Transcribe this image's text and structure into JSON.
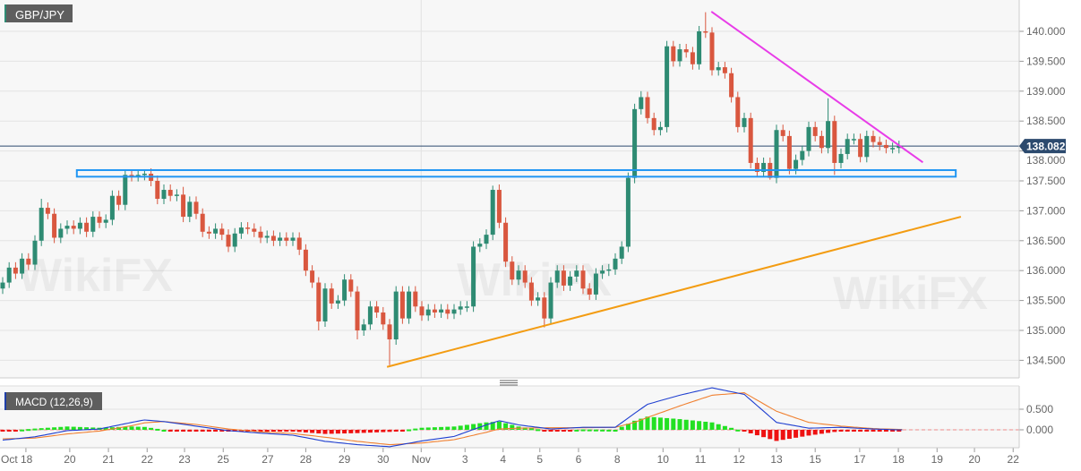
{
  "chart_data": {
    "type": "candlestick",
    "symbol": "GBP/JPY",
    "y_ticks": [
      "140.000",
      "139.500",
      "139.000",
      "138.500",
      "138.000",
      "137.500",
      "137.000",
      "136.500",
      "136.000",
      "135.500",
      "135.000",
      "134.500"
    ],
    "y_tick_values": [
      140.0,
      139.5,
      139.0,
      138.5,
      138.0,
      137.5,
      137.0,
      136.5,
      136.0,
      135.5,
      135.0,
      134.5
    ],
    "ylim": [
      134.3,
      140.5
    ],
    "last_price_label": "138.082",
    "last_price": 138.082,
    "x_ticks": [
      {
        "label": "Oct  18",
        "candle": 3.6
      },
      {
        "label": "20",
        "candle": 10.4
      },
      {
        "label": "21",
        "candle": 16.4
      },
      {
        "label": "22",
        "candle": 22.4
      },
      {
        "label": "23",
        "candle": 28.2
      },
      {
        "label": "25",
        "candle": 34.2
      },
      {
        "label": "27",
        "candle": 41.1
      },
      {
        "label": "28",
        "candle": 47
      },
      {
        "label": "29",
        "candle": 53
      },
      {
        "label": "30",
        "candle": 59
      },
      {
        "label": "Nov",
        "candle": 64.9
      },
      {
        "label": "3",
        "candle": 71.7
      },
      {
        "label": "4",
        "candle": 77.6
      },
      {
        "label": "5",
        "candle": 83.3
      },
      {
        "label": "6",
        "candle": 89.3
      },
      {
        "label": "8",
        "candle": 95.3
      },
      {
        "label": "10",
        "candle": 102.4
      },
      {
        "label": "11",
        "candle": 108.2
      },
      {
        "label": "12",
        "candle": 114.2
      },
      {
        "label": "13",
        "candle": 120
      },
      {
        "label": "15",
        "candle": 126
      },
      {
        "label": "17",
        "candle": 132.9
      },
      {
        "label": "18",
        "candle": 138.9
      },
      {
        "label": "19",
        "candle": 144.9
      },
      {
        "label": "20",
        "candle": 150.7
      },
      {
        "label": "22",
        "candle": 156.7
      }
    ],
    "close": [
      135.8,
      136.05,
      135.95,
      136.2,
      136.1,
      136.5,
      137.05,
      136.95,
      136.55,
      136.7,
      136.75,
      136.7,
      136.8,
      136.65,
      136.9,
      136.8,
      136.85,
      137.25,
      137.1,
      137.6,
      137.58,
      137.6,
      137.62,
      137.5,
      137.2,
      137.35,
      137.25,
      137.27,
      136.9,
      137.15,
      136.95,
      136.65,
      136.62,
      136.7,
      136.6,
      136.4,
      136.62,
      136.72,
      136.7,
      136.65,
      136.55,
      136.58,
      136.5,
      136.55,
      136.5,
      136.55,
      136.35,
      136.0,
      135.8,
      135.15,
      135.7,
      135.45,
      135.5,
      135.85,
      135.65,
      135.0,
      135.1,
      135.4,
      135.3,
      135.1,
      134.85,
      135.65,
      135.2,
      135.65,
      135.4,
      135.25,
      135.35,
      135.3,
      135.35,
      135.28,
      135.35,
      135.4,
      135.4,
      136.4,
      136.45,
      136.6,
      137.35,
      136.8,
      136.15,
      135.85,
      136.0,
      135.8,
      135.5,
      135.55,
      135.2,
      135.8,
      136.0,
      135.75,
      135.9,
      136.0,
      135.7,
      135.6,
      135.95,
      136.0,
      136.02,
      136.2,
      136.4,
      137.55,
      138.7,
      138.9,
      138.55,
      138.35,
      138.4,
      139.75,
      139.5,
      139.7,
      139.65,
      139.45,
      140.0,
      139.98,
      139.35,
      139.4,
      139.3,
      138.9,
      138.4,
      138.55,
      137.8,
      137.65,
      137.8,
      137.55,
      138.35,
      138.25,
      137.7,
      137.85,
      138.0,
      138.4,
      138.25,
      138.05,
      138.5,
      137.8,
      137.95,
      138.2,
      138.2,
      137.9,
      138.25,
      138.15,
      138.1,
      138.05,
      138.05,
      138.082
    ],
    "first_open": 135.7,
    "notable_wicks": [
      {
        "candle": 6,
        "high": 137.2
      },
      {
        "candle": 22,
        "high": 137.68
      },
      {
        "candle": 28,
        "high": 137.4
      },
      {
        "candle": 49,
        "low": 135.0
      },
      {
        "candle": 55,
        "low": 134.85
      },
      {
        "candle": 60,
        "low": 134.42
      },
      {
        "candle": 76,
        "high": 137.42
      },
      {
        "candle": 84,
        "low": 135.05
      },
      {
        "candle": 99,
        "high": 139.0
      },
      {
        "candle": 109,
        "high": 140.32
      },
      {
        "candle": 119,
        "low": 137.52
      },
      {
        "candle": 128,
        "high": 138.88
      },
      {
        "candle": 129,
        "low": 137.6
      }
    ],
    "annotations": [
      {
        "type": "zone",
        "name": "support",
        "from": 137.57,
        "to": 137.68,
        "start_candle": 11.5,
        "end_candle": 147.8,
        "color": "#2196f3"
      },
      {
        "type": "trendline",
        "name": "resistance",
        "start": {
          "candle": 109.9,
          "price": 140.33
        },
        "end": {
          "candle": 142.7,
          "price": 137.81
        },
        "color": "#e83ce8"
      },
      {
        "type": "trendline",
        "name": "support",
        "start": {
          "candle": 59.6,
          "price": 134.39
        },
        "end": {
          "candle": 148.6,
          "price": 136.9
        },
        "color": "#f39c12"
      }
    ],
    "macd": {
      "label": "MACD (12,26,9)",
      "y_ticks": [
        "0.500",
        "0.000"
      ],
      "y_tick_values": [
        0.5,
        0.0
      ],
      "points": [
        {
          "candle": 0,
          "macd": -0.25,
          "signal": -0.22
        },
        {
          "candle": 5,
          "macd": -0.17,
          "signal": -0.2
        },
        {
          "candle": 10,
          "macd": -0.02,
          "signal": -0.1
        },
        {
          "candle": 15,
          "macd": 0.02,
          "signal": -0.03
        },
        {
          "candle": 20,
          "macd": 0.18,
          "signal": 0.1
        },
        {
          "candle": 22,
          "macd": 0.24,
          "signal": 0.17
        },
        {
          "candle": 25,
          "macd": 0.2,
          "signal": 0.2
        },
        {
          "candle": 30,
          "macd": 0.09,
          "signal": 0.13
        },
        {
          "candle": 35,
          "macd": -0.02,
          "signal": 0.02
        },
        {
          "candle": 40,
          "macd": -0.08,
          "signal": -0.05
        },
        {
          "candle": 45,
          "macd": -0.13,
          "signal": -0.09
        },
        {
          "candle": 50,
          "macd": -0.28,
          "signal": -0.18
        },
        {
          "candle": 55,
          "macd": -0.36,
          "signal": -0.28
        },
        {
          "candle": 60,
          "macd": -0.41,
          "signal": -0.36
        },
        {
          "candle": 65,
          "macd": -0.27,
          "signal": -0.32
        },
        {
          "candle": 70,
          "macd": -0.16,
          "signal": -0.24
        },
        {
          "candle": 75,
          "macd": 0.12,
          "signal": -0.06
        },
        {
          "candle": 77,
          "macd": 0.22,
          "signal": 0.02
        },
        {
          "candle": 80,
          "macd": 0.12,
          "signal": 0.04
        },
        {
          "candle": 85,
          "macd": 0.02,
          "signal": 0.05
        },
        {
          "candle": 90,
          "macd": 0.06,
          "signal": 0.05
        },
        {
          "candle": 95,
          "macd": 0.06,
          "signal": 0.06
        },
        {
          "candle": 98,
          "macd": 0.4,
          "signal": 0.18
        },
        {
          "candle": 100,
          "macd": 0.62,
          "signal": 0.3
        },
        {
          "candle": 105,
          "macd": 0.84,
          "signal": 0.58
        },
        {
          "candle": 110,
          "macd": 1.02,
          "signal": 0.84
        },
        {
          "candle": 115,
          "macd": 0.86,
          "signal": 0.9
        },
        {
          "candle": 120,
          "macd": 0.18,
          "signal": 0.45
        },
        {
          "candle": 125,
          "macd": 0.04,
          "signal": 0.18
        },
        {
          "candle": 130,
          "macd": 0.06,
          "signal": 0.09
        },
        {
          "candle": 135,
          "macd": 0.02,
          "signal": 0.03
        },
        {
          "candle": 139,
          "macd": 0.0,
          "signal": 0.01
        }
      ],
      "colors": {
        "macd": "#1f3fd0",
        "signal": "#f08030",
        "hist_up": "#22e022",
        "hist_down": "#ee1111"
      }
    },
    "colors": {
      "up": "#2e8b73",
      "down": "#d9573f",
      "last_price": "#2c4a6e"
    },
    "grid": true,
    "watermark": "WikiFX"
  }
}
